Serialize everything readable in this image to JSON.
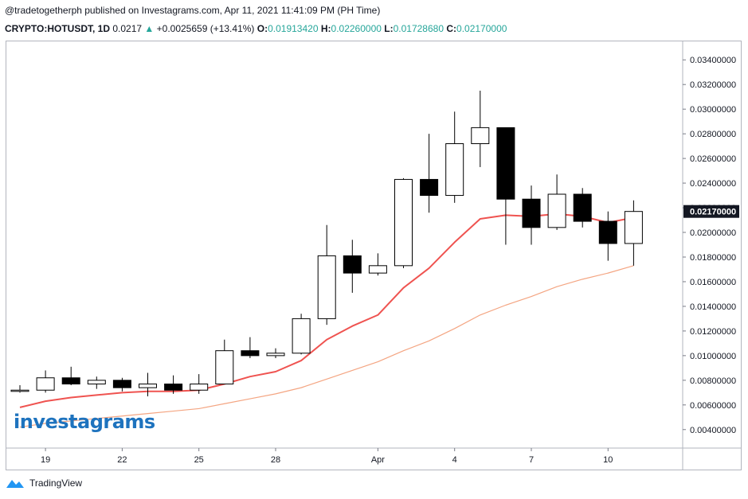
{
  "header": {
    "published_line": "@tradetogetherph published on Investagrams.com, Apr 11, 2021 11:41:09 PM (PH Time)",
    "symbol": "CRYPTO:HOTUSDT, 1D",
    "last": "0.0217",
    "change_arrow": "▲",
    "change": "+0.0025659 (+13.41%)",
    "o_label": "O:",
    "o_value": "0.01913420",
    "h_label": "H:",
    "h_value": "0.02260000",
    "l_label": "L:",
    "l_value": "0.01728680",
    "c_label": "C:",
    "c_value": "0.02170000"
  },
  "brand": "investagrams",
  "footer": {
    "label": "TradingView"
  },
  "colors": {
    "up_text": "#26a69a",
    "ma_fast": "#ef5350",
    "ma_slow": "#f4a582",
    "brand": "#1e73be"
  },
  "chart_data": {
    "type": "candlestick",
    "y_tick_labels": [
      "0.03400000",
      "0.03200000",
      "0.03000000",
      "0.02800000",
      "0.02600000",
      "0.02400000",
      "0.02200000",
      "0.02000000",
      "0.01800000",
      "0.01600000",
      "0.01400000",
      "0.01200000",
      "0.01000000",
      "0.00800000",
      "0.00600000",
      "0.00400000"
    ],
    "y_ticks": [
      0.034,
      0.032,
      0.03,
      0.028,
      0.026,
      0.024,
      0.022,
      0.02,
      0.018,
      0.016,
      0.014,
      0.012,
      0.01,
      0.008,
      0.006,
      0.004
    ],
    "ylim": [
      0.0025,
      0.0355
    ],
    "x_tick_labels": [
      {
        "label": "19",
        "index": 1
      },
      {
        "label": "22",
        "index": 4
      },
      {
        "label": "25",
        "index": 7
      },
      {
        "label": "28",
        "index": 10
      },
      {
        "label": "Apr",
        "index": 14
      },
      {
        "label": "4",
        "index": 17
      },
      {
        "label": "7",
        "index": 20
      },
      {
        "label": "10",
        "index": 23
      }
    ],
    "last_price_label": "0.02170000",
    "last_price": 0.0217,
    "candles": [
      {
        "o": 0.0071,
        "h": 0.0076,
        "l": 0.007,
        "c": 0.0072
      },
      {
        "o": 0.0072,
        "h": 0.0088,
        "l": 0.007,
        "c": 0.0082
      },
      {
        "o": 0.0082,
        "h": 0.0091,
        "l": 0.0076,
        "c": 0.0077
      },
      {
        "o": 0.0077,
        "h": 0.0083,
        "l": 0.0073,
        "c": 0.008
      },
      {
        "o": 0.008,
        "h": 0.0082,
        "l": 0.0071,
        "c": 0.0074
      },
      {
        "o": 0.0074,
        "h": 0.0086,
        "l": 0.0067,
        "c": 0.0077
      },
      {
        "o": 0.0077,
        "h": 0.0084,
        "l": 0.0069,
        "c": 0.0072
      },
      {
        "o": 0.0072,
        "h": 0.0085,
        "l": 0.0069,
        "c": 0.0077
      },
      {
        "o": 0.0077,
        "h": 0.0113,
        "l": 0.0077,
        "c": 0.0104
      },
      {
        "o": 0.0104,
        "h": 0.0115,
        "l": 0.0098,
        "c": 0.01
      },
      {
        "o": 0.01,
        "h": 0.0106,
        "l": 0.0098,
        "c": 0.0102
      },
      {
        "o": 0.0102,
        "h": 0.0134,
        "l": 0.0101,
        "c": 0.013
      },
      {
        "o": 0.013,
        "h": 0.0206,
        "l": 0.0125,
        "c": 0.0181
      },
      {
        "o": 0.0181,
        "h": 0.0194,
        "l": 0.0151,
        "c": 0.0167
      },
      {
        "o": 0.0167,
        "h": 0.0183,
        "l": 0.0165,
        "c": 0.0173
      },
      {
        "o": 0.0173,
        "h": 0.0244,
        "l": 0.0171,
        "c": 0.0243
      },
      {
        "o": 0.0243,
        "h": 0.028,
        "l": 0.0216,
        "c": 0.023
      },
      {
        "o": 0.023,
        "h": 0.0298,
        "l": 0.0224,
        "c": 0.0272
      },
      {
        "o": 0.0272,
        "h": 0.0315,
        "l": 0.0253,
        "c": 0.0285
      },
      {
        "o": 0.0285,
        "h": 0.0285,
        "l": 0.019,
        "c": 0.0227
      },
      {
        "o": 0.0227,
        "h": 0.0238,
        "l": 0.019,
        "c": 0.0204
      },
      {
        "o": 0.0204,
        "h": 0.0247,
        "l": 0.0202,
        "c": 0.0231
      },
      {
        "o": 0.0231,
        "h": 0.0236,
        "l": 0.0204,
        "c": 0.0209
      },
      {
        "o": 0.0209,
        "h": 0.0217,
        "l": 0.0177,
        "c": 0.0191
      },
      {
        "o": 0.0191,
        "h": 0.0226,
        "l": 0.0173,
        "c": 0.0217
      }
    ],
    "series": [
      {
        "values": [
          0.0058,
          0.0063,
          0.0066,
          0.0068,
          0.007,
          0.0071,
          0.0071,
          0.0072,
          0.0077,
          0.0083,
          0.0087,
          0.0096,
          0.0113,
          0.0124,
          0.0133,
          0.0155,
          0.0171,
          0.0192,
          0.0211,
          0.0214,
          0.0213,
          0.0215,
          0.0213,
          0.0208,
          0.0212
        ]
      },
      {
        "values": [
          0.0042,
          0.0045,
          0.0047,
          0.0049,
          0.0051,
          0.0053,
          0.0055,
          0.0057,
          0.0061,
          0.0065,
          0.0069,
          0.0074,
          0.0081,
          0.0088,
          0.0095,
          0.0104,
          0.0112,
          0.0122,
          0.0133,
          0.0141,
          0.0148,
          0.0156,
          0.0162,
          0.0167,
          0.0173
        ]
      }
    ]
  }
}
